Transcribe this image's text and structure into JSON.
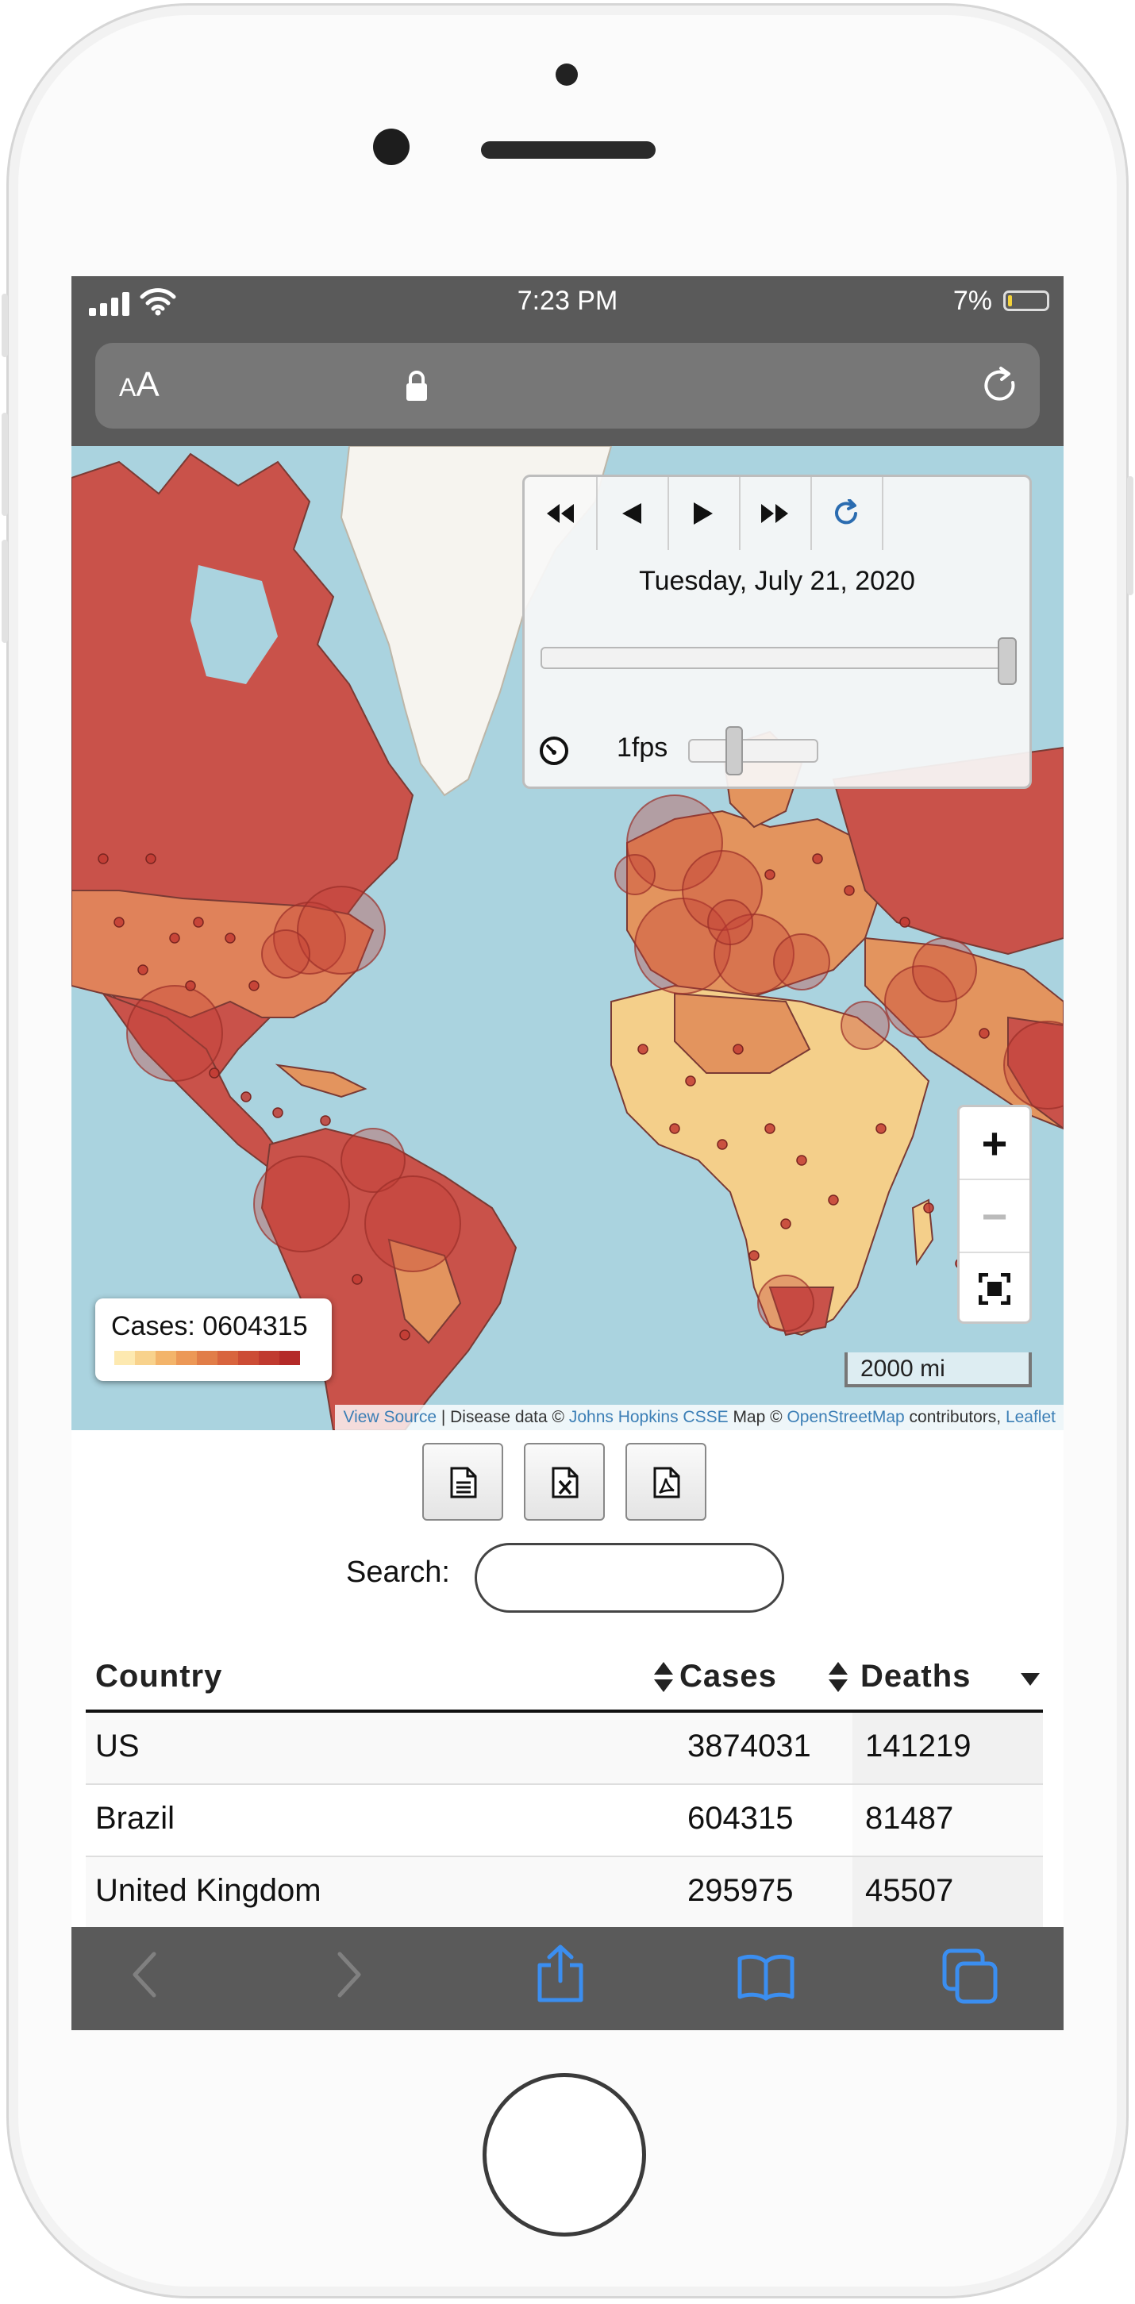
{
  "status_bar": {
    "time": "7:23 PM",
    "battery": "7%"
  },
  "address_bar": {
    "text_size_label_small": "A",
    "text_size_label_large": "A"
  },
  "timeline": {
    "date": "Tuesday, July 21, 2020",
    "fps": "1fps",
    "progress": 1.0,
    "speed_level": 0.33
  },
  "zoom": {
    "in": "+",
    "out": "−"
  },
  "legend": {
    "label": "Cases: 0604315"
  },
  "scale": {
    "label": "2000 mi"
  },
  "attribution": {
    "view_source": "View Source",
    "sep1": " | Disease data © ",
    "jhu": "Johns Hopkins CSSE",
    "sep2": " Map © ",
    "osm": "OpenStreetMap",
    "sep3": " contributors, ",
    "leaflet": "Leaflet"
  },
  "search": {
    "label": "Search:",
    "value": "",
    "placeholder": ""
  },
  "table": {
    "headers": {
      "country": "Country",
      "cases": "Cases",
      "deaths": "Deaths"
    },
    "rows": [
      {
        "country": "US",
        "cases": "3874031",
        "deaths": "141219"
      },
      {
        "country": "Brazil",
        "cases": "604315",
        "deaths": "81487"
      },
      {
        "country": "United Kingdom",
        "cases": "295975",
        "deaths": "45507"
      }
    ]
  },
  "colors": {
    "ocean": "#aad3df",
    "land_dark": "#c9524a",
    "land_mid": "#e3945e",
    "land_light": "#f4cf8a",
    "bubble": "#c23b33",
    "link": "#3c7fb6",
    "ios_blue": "#3b8ef0"
  }
}
